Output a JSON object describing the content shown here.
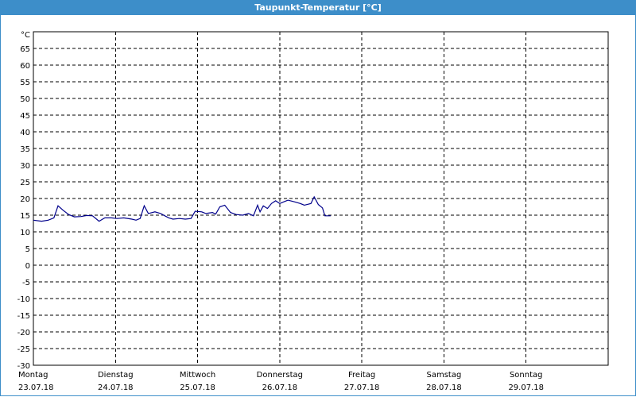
{
  "window": {
    "title": "Taupunkt-Temperatur [°C]"
  },
  "chart_data": {
    "type": "line",
    "title": "Taupunkt-Temperatur [°C]",
    "ylabel": "°C",
    "ylim": [
      -30,
      70
    ],
    "yticks": [
      65,
      60,
      55,
      50,
      45,
      40,
      35,
      30,
      25,
      20,
      15,
      10,
      5,
      0,
      -5,
      -10,
      -15,
      -20,
      -25,
      -30
    ],
    "xlim": [
      0,
      7
    ],
    "x_unit": "days since Montag 23.07.18 00:00",
    "categories": [
      {
        "day": "Montag",
        "date": "23.07.18"
      },
      {
        "day": "Dienstag",
        "date": "24.07.18"
      },
      {
        "day": "Mittwoch",
        "date": "25.07.18"
      },
      {
        "day": "Donnerstag",
        "date": "26.07.18"
      },
      {
        "day": "Freitag",
        "date": "27.07.18"
      },
      {
        "day": "Samstag",
        "date": "28.07.18"
      },
      {
        "day": "Sonntag",
        "date": "29.07.18"
      }
    ],
    "grid": true,
    "series": [
      {
        "name": "Taupunkt",
        "color": "#00008b",
        "points": [
          [
            0.0,
            13.5
          ],
          [
            0.1,
            13.2
          ],
          [
            0.18,
            13.5
          ],
          [
            0.25,
            14.2
          ],
          [
            0.3,
            17.8
          ],
          [
            0.36,
            16.5
          ],
          [
            0.43,
            15.2
          ],
          [
            0.5,
            14.5
          ],
          [
            0.58,
            14.6
          ],
          [
            0.65,
            14.9
          ],
          [
            0.72,
            14.8
          ],
          [
            0.8,
            13.2
          ],
          [
            0.87,
            14.2
          ],
          [
            0.95,
            14.2
          ],
          [
            1.02,
            14.0
          ],
          [
            1.1,
            14.2
          ],
          [
            1.2,
            13.8
          ],
          [
            1.25,
            13.5
          ],
          [
            1.3,
            14.0
          ],
          [
            1.35,
            17.8
          ],
          [
            1.4,
            15.5
          ],
          [
            1.48,
            16.0
          ],
          [
            1.55,
            15.5
          ],
          [
            1.6,
            14.8
          ],
          [
            1.65,
            14.2
          ],
          [
            1.7,
            13.8
          ],
          [
            1.78,
            14.0
          ],
          [
            1.85,
            13.8
          ],
          [
            1.92,
            14.0
          ],
          [
            1.97,
            16.2
          ],
          [
            2.05,
            16.0
          ],
          [
            2.1,
            15.5
          ],
          [
            2.18,
            15.8
          ],
          [
            2.22,
            15.3
          ],
          [
            2.27,
            17.5
          ],
          [
            2.33,
            18.0
          ],
          [
            2.4,
            15.8
          ],
          [
            2.47,
            15.2
          ],
          [
            2.55,
            15.0
          ],
          [
            2.62,
            15.5
          ],
          [
            2.68,
            14.8
          ],
          [
            2.73,
            18.0
          ],
          [
            2.76,
            16.0
          ],
          [
            2.8,
            17.8
          ],
          [
            2.85,
            17.0
          ],
          [
            2.9,
            18.5
          ],
          [
            2.95,
            19.3
          ],
          [
            3.0,
            18.5
          ],
          [
            3.05,
            19.0
          ],
          [
            3.1,
            19.5
          ],
          [
            3.18,
            19.0
          ],
          [
            3.25,
            18.5
          ],
          [
            3.3,
            18.0
          ],
          [
            3.38,
            18.5
          ],
          [
            3.42,
            20.5
          ],
          [
            3.47,
            18.2
          ],
          [
            3.52,
            17.2
          ],
          [
            3.55,
            14.8
          ],
          [
            3.62,
            14.8
          ]
        ]
      }
    ]
  }
}
